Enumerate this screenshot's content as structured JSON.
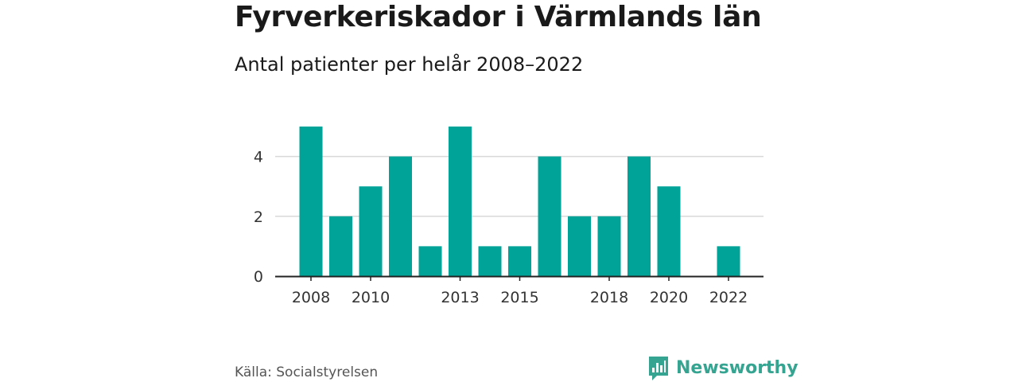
{
  "header": {
    "title": "Fyrverkeriskador i Värmlands län",
    "subtitle": "Antal patienter per helår 2008–2022"
  },
  "footer": {
    "source": "Källa: Socialstyrelsen",
    "brand": "Newsworthy"
  },
  "colors": {
    "bar": "#00a398",
    "brand": "#35a491",
    "grid": "#d9d9d9",
    "axis": "#222222"
  },
  "icons": {
    "logo": "newsworthy-logo-icon"
  },
  "chart_data": {
    "type": "bar",
    "title": "Fyrverkeriskador i Värmlands län",
    "subtitle": "Antal patienter per helår 2008–2022",
    "xlabel": "",
    "ylabel": "",
    "categories": [
      "2008",
      "2009",
      "2010",
      "2011",
      "2012",
      "2013",
      "2014",
      "2015",
      "2016",
      "2017",
      "2018",
      "2019",
      "2020",
      "2021",
      "2022"
    ],
    "values": [
      5,
      2,
      3,
      4,
      1,
      5,
      1,
      1,
      4,
      2,
      2,
      4,
      3,
      0,
      1
    ],
    "x_tick_labels": [
      "2008",
      "2010",
      "2013",
      "2015",
      "2018",
      "2020",
      "2022"
    ],
    "y_ticks": [
      0,
      2,
      4
    ],
    "ylim": [
      0,
      5
    ],
    "grid": true
  }
}
